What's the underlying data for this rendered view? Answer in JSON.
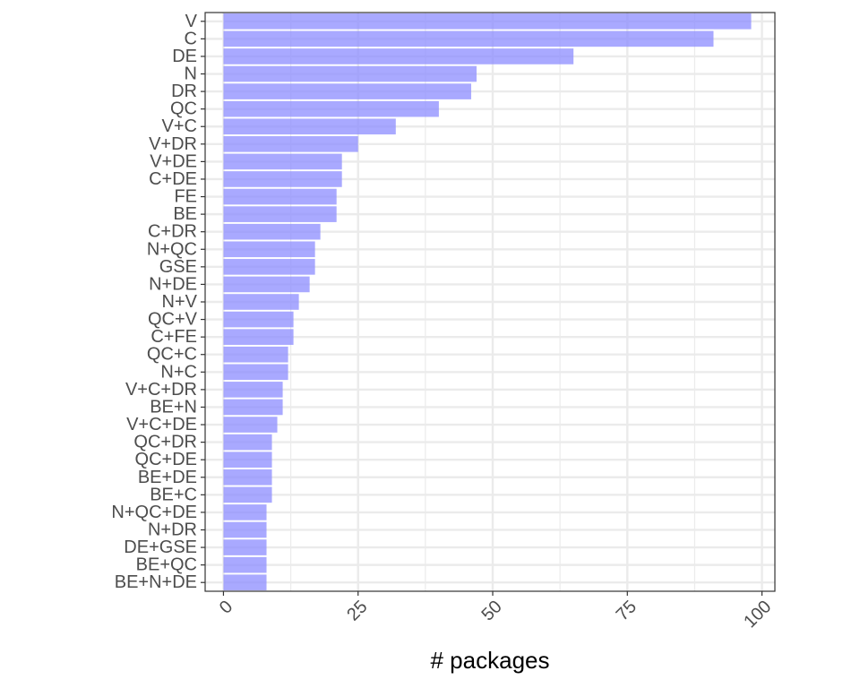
{
  "chart_data": {
    "type": "bar",
    "orientation": "horizontal",
    "categories": [
      "V",
      "C",
      "DE",
      "N",
      "DR",
      "QC",
      "V+C",
      "V+DR",
      "V+DE",
      "C+DE",
      "FE",
      "BE",
      "C+DR",
      "N+QC",
      "GSE",
      "N+DE",
      "N+V",
      "QC+V",
      "C+FE",
      "QC+C",
      "N+C",
      "V+C+DR",
      "BE+N",
      "V+C+DE",
      "QC+DR",
      "QC+DE",
      "BE+DE",
      "BE+C",
      "N+QC+DE",
      "N+DR",
      "DE+GSE",
      "BE+QC",
      "BE+N+DE"
    ],
    "values": [
      98,
      91,
      65,
      47,
      46,
      40,
      32,
      25,
      22,
      22,
      21,
      21,
      18,
      17,
      17,
      16,
      14,
      13,
      13,
      12,
      12,
      11,
      11,
      10,
      9,
      9,
      9,
      9,
      8,
      8,
      8,
      8,
      8
    ],
    "xlabel": "# packages",
    "ylabel": "",
    "xlim": [
      -3.4,
      102.4
    ],
    "xticks": [
      0,
      25,
      50,
      75,
      100
    ],
    "xtick_labels": [
      "0",
      "25",
      "50",
      "75",
      "100"
    ],
    "grid": true,
    "legend": "none",
    "colors": {
      "bar": "#8c8cff",
      "bar_opacity": 0.75,
      "grid": "#ebebeb",
      "panel_border": "#333333",
      "tick_text": "#4d4d4d",
      "title_text": "#000000"
    }
  }
}
